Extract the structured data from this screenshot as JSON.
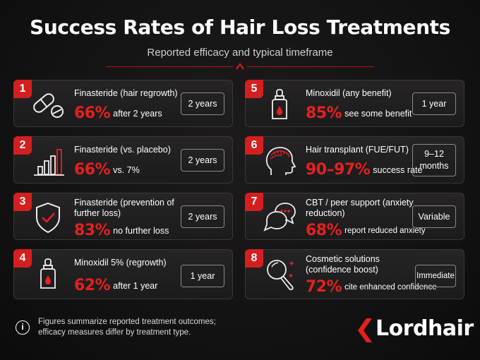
{
  "header": {
    "title": "Success Rates of Hair Loss Treatments",
    "subtitle": "Reported efficacy and typical timeframe"
  },
  "colors": {
    "accent": "#e5201e",
    "badge": "#d41f1f",
    "card": "#222021"
  },
  "cards": [
    {
      "num": "1",
      "title": "Finasteride (hair regrowth)",
      "pct": "66%",
      "desc": "after 2 years",
      "time": "2 years",
      "icon": "pills-icon"
    },
    {
      "num": "2",
      "title": "Finasteride (vs. placebo)",
      "pct": "66%",
      "desc": "vs. 7%",
      "time": "2 years",
      "icon": "bar-chart-icon"
    },
    {
      "num": "3",
      "title": "Finasteride (prevention of further loss)",
      "pct": "83%",
      "desc": "no further loss",
      "time": "2 years",
      "icon": "shield-check-icon"
    },
    {
      "num": "4",
      "title": "Minoxidil 5% (regrowth)",
      "pct": "62%",
      "desc": "after 1 year",
      "time": "1 year",
      "icon": "dropper-bottle-icon"
    },
    {
      "num": "5",
      "title": "Minoxidil (any benefit)",
      "pct": "85%",
      "desc": "see some benefit",
      "time": "1 year",
      "icon": "dropper-bottle-icon"
    },
    {
      "num": "6",
      "title": "Hair transplant (FUE/FUT)",
      "pct": "90–97%",
      "desc": "success rate",
      "time": "9–12 months",
      "icon": "head-profile-icon"
    },
    {
      "num": "7",
      "title": "CBT / peer support (anxiety reduction)",
      "pct": "68%",
      "desc": "report reduced anxiety",
      "time": "Variable",
      "icon": "chat-bubbles-icon"
    },
    {
      "num": "8",
      "title": "Cosmetic solutions (confidence boost)",
      "pct": "72%",
      "desc": "cite enhanced confidence",
      "time": "Immediate",
      "icon": "hand-mirror-icon"
    }
  ],
  "footer": {
    "note": "Figures summarize reported treatment outcomes; efficacy measures differ by treatment type.",
    "info_icon": "info-icon",
    "brand": "Lordhair"
  }
}
